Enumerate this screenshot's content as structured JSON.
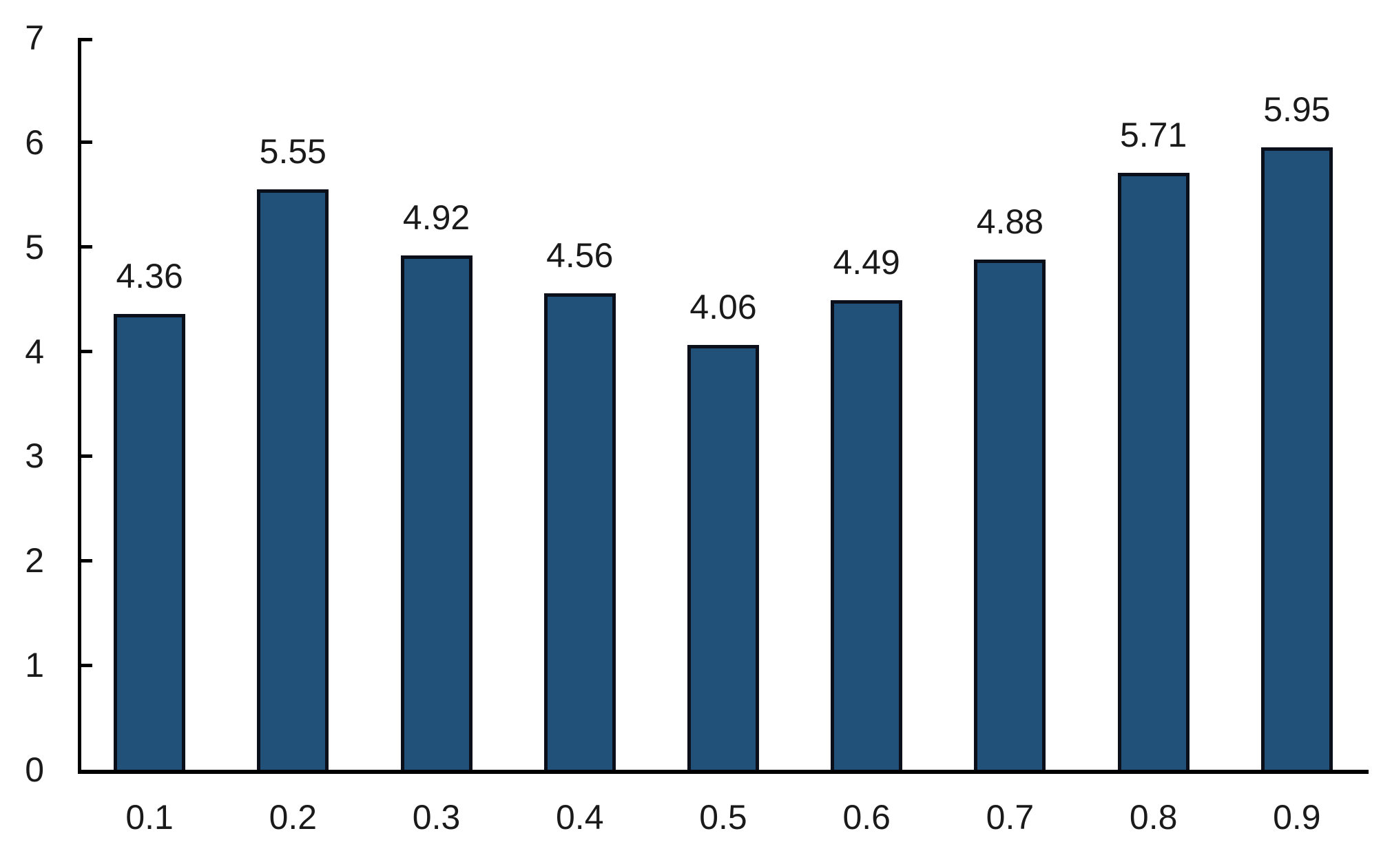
{
  "chart_data": {
    "type": "bar",
    "categories": [
      "0.1",
      "0.2",
      "0.3",
      "0.4",
      "0.5",
      "0.6",
      "0.7",
      "0.8",
      "0.9"
    ],
    "values": [
      4.36,
      5.55,
      4.92,
      4.56,
      4.06,
      4.49,
      4.88,
      5.71,
      5.95
    ],
    "data_labels": [
      "4.36",
      "5.55",
      "4.92",
      "4.56",
      "4.06",
      "4.49",
      "4.88",
      "5.71",
      "5.95"
    ],
    "title": "",
    "xlabel": "",
    "ylabel": "",
    "ylim": [
      0,
      7
    ],
    "yticks": [
      "0",
      "1",
      "2",
      "3",
      "4",
      "5",
      "6",
      "7"
    ],
    "grid": false,
    "legend": false,
    "bar_fill": "#215078",
    "bar_border": "#0a0f1a",
    "axis_color": "#000000",
    "text_color": "#1a1a1a"
  }
}
